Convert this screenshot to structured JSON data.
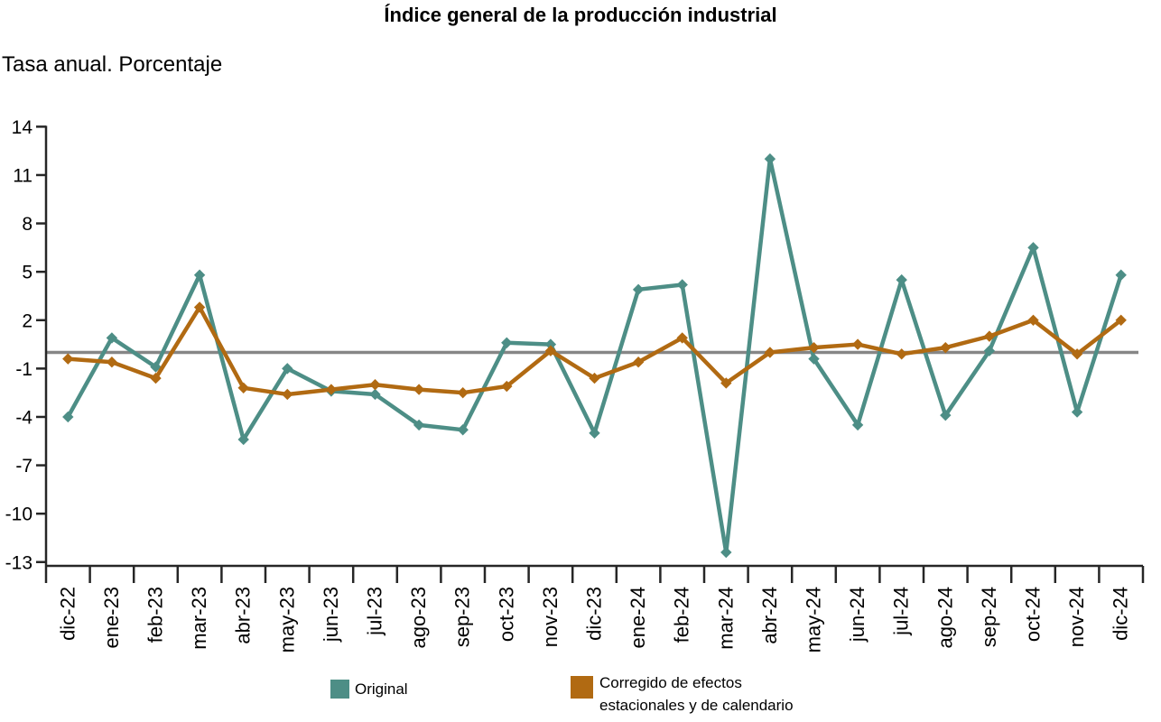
{
  "chart_data": {
    "type": "line",
    "title": "Índice general de la producción industrial",
    "subtitle": "Tasa anual. Porcentaje",
    "categories": [
      "dic-22",
      "ene-23",
      "feb-23",
      "mar-23",
      "abr-23",
      "may-23",
      "jun-23",
      "jul-23",
      "ago-23",
      "sep-23",
      "oct-23",
      "nov-23",
      "dic-23",
      "ene-24",
      "feb-24",
      "mar-24",
      "abr-24",
      "may-24",
      "jun-24",
      "jul-24",
      "ago-24",
      "sep-24",
      "oct-24",
      "nov-24",
      "dic-24"
    ],
    "series": [
      {
        "name": "Original",
        "color": "#4d8e86",
        "marker": "diamond",
        "values": [
          -4.0,
          0.9,
          -0.9,
          4.8,
          -5.4,
          -1.0,
          -2.4,
          -2.6,
          -4.5,
          -4.8,
          0.6,
          0.5,
          -5.0,
          3.9,
          4.2,
          -12.4,
          12.0,
          -0.4,
          -4.5,
          4.5,
          -3.9,
          0.1,
          6.5,
          -3.7,
          4.8
        ]
      },
      {
        "name": "Corregido de efectos estacionales y de calendario",
        "color": "#b16a12",
        "marker": "diamond",
        "values": [
          -0.4,
          -0.6,
          -1.6,
          2.8,
          -2.2,
          -2.6,
          -2.3,
          -2.0,
          -2.3,
          -2.5,
          -2.1,
          0.1,
          -1.6,
          -0.6,
          0.9,
          -1.9,
          0.0,
          0.3,
          0.5,
          -0.1,
          0.3,
          1.0,
          2.0,
          -0.1,
          2.0
        ]
      }
    ],
    "y_ticks": [
      14,
      11,
      8,
      5,
      2,
      -1,
      -4,
      -7,
      -10,
      -13
    ],
    "ylim": [
      -13,
      14
    ],
    "xlabel": "",
    "ylabel": "",
    "grid": false,
    "zero_line": {
      "value": 0,
      "color": "#868686"
    },
    "axis_color": "#262626",
    "legend_position": "bottom",
    "legend": {
      "item1": "Original",
      "item2_lines": [
        "Corregido de efectos",
        "estacionales y de calendario"
      ]
    }
  }
}
